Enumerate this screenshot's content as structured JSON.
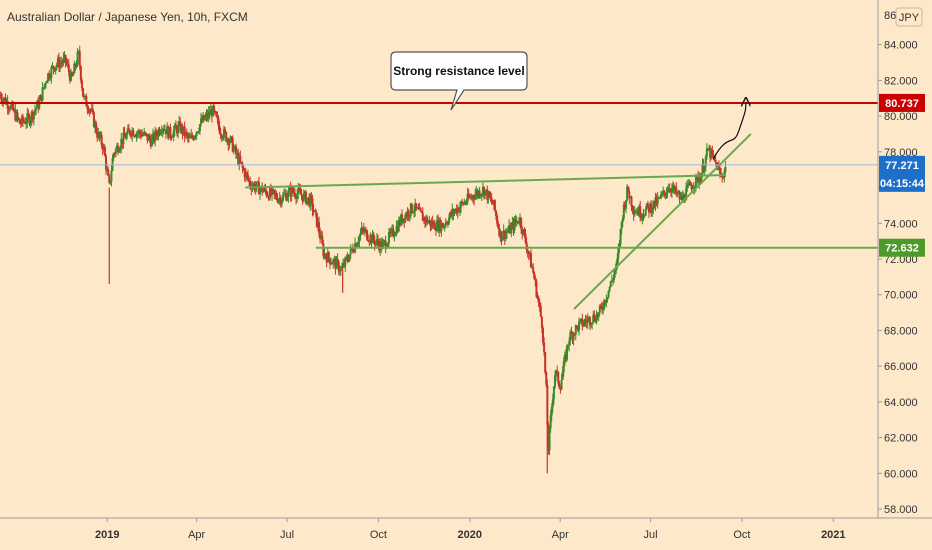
{
  "chart_data": {
    "type": "candlestick",
    "title": "Australian Dollar / Japanese Yen, 10h, FXCM",
    "currency": "JPY",
    "ylim": [
      57.5,
      86.5
    ],
    "y_ticks": [
      "84.000",
      "82.000",
      "80.000",
      "78.000",
      "76.000",
      "74.000",
      "72.000",
      "70.000",
      "68.000",
      "66.000",
      "64.000",
      "62.000",
      "60.000",
      "58.000"
    ],
    "y_tick_values": [
      84,
      82,
      80,
      78,
      76,
      74,
      72,
      70,
      68,
      66,
      64,
      62,
      60,
      58
    ],
    "y_top_partial": "86",
    "x_ticks": [
      {
        "label": "2019",
        "x": "2019-01-01",
        "bold": true
      },
      {
        "label": "Apr",
        "x": "2019-04-01",
        "bold": false
      },
      {
        "label": "Jul",
        "x": "2019-07-01",
        "bold": false
      },
      {
        "label": "Oct",
        "x": "2019-10-01",
        "bold": false
      },
      {
        "label": "2020",
        "x": "2020-01-01",
        "bold": true
      },
      {
        "label": "Apr",
        "x": "2020-04-01",
        "bold": false
      },
      {
        "label": "Jul",
        "x": "2020-07-01",
        "bold": false
      },
      {
        "label": "Oct",
        "x": "2020-10-01",
        "bold": false
      },
      {
        "label": "2021",
        "x": "2021-01-01",
        "bold": true
      }
    ],
    "x_range": [
      "2018-09-15",
      "2021-02-15"
    ],
    "price_path": [
      [
        "2018-09-15",
        81.2
      ],
      [
        "2018-09-25",
        80.6
      ],
      [
        "2018-10-05",
        79.6
      ],
      [
        "2018-10-15",
        79.9
      ],
      [
        "2018-10-25",
        80.8
      ],
      [
        "2018-11-01",
        82.2
      ],
      [
        "2018-11-10",
        82.9
      ],
      [
        "2018-11-20",
        83.1
      ],
      [
        "2018-11-26",
        82.0
      ],
      [
        "2018-12-03",
        83.5
      ],
      [
        "2018-12-08",
        81.0
      ],
      [
        "2018-12-15",
        80.4
      ],
      [
        "2018-12-22",
        79.0
      ],
      [
        "2018-12-28",
        78.3
      ],
      [
        "2019-01-03",
        76.0
      ],
      [
        "2019-01-07",
        77.9
      ],
      [
        "2019-01-15",
        78.6
      ],
      [
        "2019-01-25",
        79.2
      ],
      [
        "2019-02-05",
        79.0
      ],
      [
        "2019-02-15",
        78.6
      ],
      [
        "2019-02-25",
        79.5
      ],
      [
        "2019-03-05",
        79.0
      ],
      [
        "2019-03-15",
        79.4
      ],
      [
        "2019-03-25",
        78.6
      ],
      [
        "2019-04-05",
        79.6
      ],
      [
        "2019-04-17",
        80.3
      ],
      [
        "2019-04-25",
        79.2
      ],
      [
        "2019-05-05",
        78.6
      ],
      [
        "2019-05-15",
        77.3
      ],
      [
        "2019-05-25",
        76.2
      ],
      [
        "2019-06-05",
        75.9
      ],
      [
        "2019-06-15",
        75.6
      ],
      [
        "2019-06-25",
        75.4
      ],
      [
        "2019-07-05",
        75.8
      ],
      [
        "2019-07-15",
        75.6
      ],
      [
        "2019-07-25",
        75.2
      ],
      [
        "2019-08-01",
        73.9
      ],
      [
        "2019-08-07",
        72.3
      ],
      [
        "2019-08-15",
        71.9
      ],
      [
        "2019-08-25",
        71.4
      ],
      [
        "2019-09-05",
        72.6
      ],
      [
        "2019-09-15",
        73.6
      ],
      [
        "2019-09-25",
        73.1
      ],
      [
        "2019-10-05",
        72.7
      ],
      [
        "2019-10-15",
        73.4
      ],
      [
        "2019-10-25",
        74.3
      ],
      [
        "2019-11-05",
        74.9
      ],
      [
        "2019-11-15",
        74.3
      ],
      [
        "2019-11-25",
        73.9
      ],
      [
        "2019-12-05",
        73.9
      ],
      [
        "2019-12-15",
        74.6
      ],
      [
        "2019-12-25",
        75.1
      ],
      [
        "2020-01-05",
        75.6
      ],
      [
        "2020-01-15",
        75.9
      ],
      [
        "2020-01-25",
        75.0
      ],
      [
        "2020-02-01",
        73.3
      ],
      [
        "2020-02-10",
        73.6
      ],
      [
        "2020-02-20",
        74.3
      ],
      [
        "2020-02-28",
        72.6
      ],
      [
        "2020-03-05",
        71.2
      ],
      [
        "2020-03-10",
        69.6
      ],
      [
        "2020-03-14",
        68.3
      ],
      [
        "2020-03-18",
        64.6
      ],
      [
        "2020-03-20",
        61.3
      ],
      [
        "2020-03-24",
        64.1
      ],
      [
        "2020-03-27",
        65.7
      ],
      [
        "2020-04-01",
        64.9
      ],
      [
        "2020-04-10",
        67.6
      ],
      [
        "2020-04-20",
        68.3
      ],
      [
        "2020-04-30",
        68.6
      ],
      [
        "2020-05-10",
        68.9
      ],
      [
        "2020-05-20",
        70.3
      ],
      [
        "2020-05-28",
        71.6
      ],
      [
        "2020-06-03",
        74.6
      ],
      [
        "2020-06-08",
        75.9
      ],
      [
        "2020-06-14",
        74.8
      ],
      [
        "2020-06-22",
        74.6
      ],
      [
        "2020-07-01",
        74.9
      ],
      [
        "2020-07-10",
        75.3
      ],
      [
        "2020-07-20",
        76.1
      ],
      [
        "2020-08-01",
        75.3
      ],
      [
        "2020-08-10",
        76.1
      ],
      [
        "2020-08-20",
        76.6
      ],
      [
        "2020-08-28",
        78.1
      ],
      [
        "2020-09-05",
        77.3
      ],
      [
        "2020-09-10",
        76.6
      ],
      [
        "2020-09-15",
        77.1
      ]
    ],
    "spikes": [
      {
        "x": "2019-01-03",
        "low": 70.6
      },
      {
        "x": "2019-08-26",
        "low": 70.1
      },
      {
        "x": "2020-03-19",
        "low": 60.0
      }
    ],
    "annotations": {
      "resistance": {
        "price": 80.737,
        "label": "80.737",
        "color": "#cc0000"
      },
      "current": {
        "price": 77.271,
        "label": "77.271",
        "countdown": "04:15:44",
        "color": "#1e6fc9"
      },
      "support": {
        "price": 72.632,
        "label": "72.632",
        "color": "#4c9a2a"
      },
      "callout": {
        "text": "Strong resistance level"
      },
      "neckline": {
        "from": [
          "2019-05-20",
          76.0
        ],
        "to": [
          "2020-09-15",
          76.7
        ]
      },
      "support_line": {
        "from": [
          "2019-07-30",
          72.632
        ],
        "to": [
          "2021-02-15",
          72.632
        ]
      },
      "uptrend": {
        "from": [
          "2020-04-15",
          69.2
        ],
        "to": [
          "2020-10-10",
          79.0
        ]
      },
      "projection": [
        [
          "2020-09-02",
          77.6
        ],
        [
          "2020-09-18",
          78.4
        ],
        [
          "2020-09-28",
          79.2
        ],
        [
          "2020-10-05",
          80.8
        ]
      ]
    },
    "colors": {
      "up": "#3a8a2a",
      "down": "#c8322a",
      "background": "#fde9c9",
      "trendline": "#6aa84f",
      "resistance": "#cc0000"
    }
  }
}
